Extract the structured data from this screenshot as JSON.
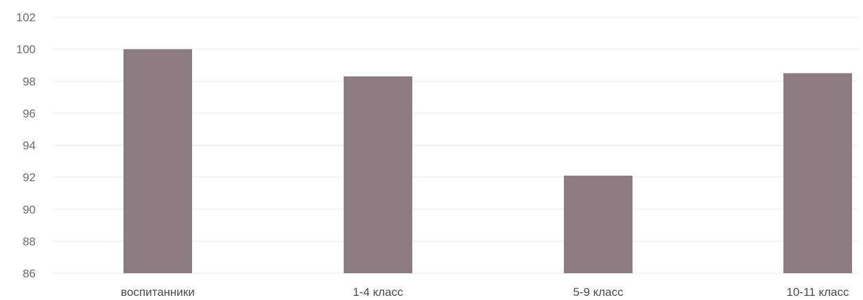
{
  "chart_data": {
    "type": "bar",
    "categories": [
      "воспитанники",
      "1-4 класс",
      "5-9 класс",
      "10-11 класс"
    ],
    "values": [
      100,
      98.3,
      92.1,
      98.5
    ],
    "title": "",
    "xlabel": "",
    "ylabel": "",
    "ylim": [
      86,
      102
    ],
    "yticks": [
      86,
      88,
      90,
      92,
      94,
      96,
      98,
      100,
      102
    ],
    "grid": true,
    "legend": "none",
    "bar_color": "#8c7b80"
  }
}
